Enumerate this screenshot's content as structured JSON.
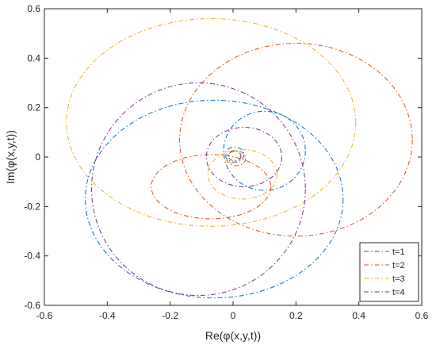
{
  "chart_data": {
    "type": "line",
    "title": "",
    "xlabel": "Re(φ(x,y,t))",
    "ylabel": "Im(φ(x,y,t))",
    "xlim": [
      -0.6,
      0.6
    ],
    "ylim": [
      -0.6,
      0.6
    ],
    "x_ticks": [
      -0.6,
      -0.4,
      -0.2,
      0,
      0.2,
      0.4,
      0.6
    ],
    "y_ticks": [
      -0.6,
      -0.4,
      -0.2,
      0,
      0.2,
      0.4,
      0.6
    ],
    "x_tick_labels": [
      "-0.6",
      "-0.4",
      "-0.2",
      "0",
      "0.2",
      "0.4",
      "0.6"
    ],
    "y_tick_labels": [
      "-0.6",
      "-0.4",
      "-0.2",
      "0",
      "0.2",
      "0.4",
      "0.6"
    ],
    "grid": false,
    "legend_position": "bottom-right",
    "line_style": "dash-dot",
    "series": [
      {
        "name": "t=1",
        "color": "#0072BD",
        "loops": [
          {
            "cx": -0.06,
            "cy": -0.17,
            "rx": 0.41,
            "ry": 0.4,
            "rot": 0
          },
          {
            "cx": 0.1,
            "cy": 0.025,
            "rx": 0.13,
            "ry": 0.16,
            "rot": 0
          },
          {
            "cx": 0.005,
            "cy": 0.01,
            "rx": 0.03,
            "ry": 0.03,
            "rot": 0
          }
        ]
      },
      {
        "name": "t=2",
        "color": "#D95319",
        "loops": [
          {
            "cx": 0.2,
            "cy": 0.07,
            "rx": 0.37,
            "ry": 0.39,
            "rot": 0
          },
          {
            "cx": -0.07,
            "cy": -0.12,
            "rx": 0.19,
            "ry": 0.13,
            "rot": 0
          },
          {
            "cx": 0.01,
            "cy": -0.005,
            "rx": 0.03,
            "ry": 0.03,
            "rot": 0
          }
        ]
      },
      {
        "name": "t=3",
        "color": "#EDB120",
        "loops": [
          {
            "cx": -0.07,
            "cy": 0.14,
            "rx": 0.46,
            "ry": 0.42,
            "rot": 0
          },
          {
            "cx": 0.03,
            "cy": -0.07,
            "rx": 0.11,
            "ry": 0.1,
            "rot": 0
          },
          {
            "cx": 0.0,
            "cy": 0.0,
            "rx": 0.025,
            "ry": 0.025,
            "rot": 0
          }
        ]
      },
      {
        "name": "t=4",
        "color": "#7E2F8E",
        "loops": [
          {
            "cx": -0.11,
            "cy": -0.13,
            "rx": 0.34,
            "ry": 0.43,
            "rot": 0
          },
          {
            "cx": 0.035,
            "cy": 0.0,
            "rx": 0.12,
            "ry": 0.12,
            "rot": 0
          },
          {
            "cx": 0.005,
            "cy": 0.005,
            "rx": 0.02,
            "ry": 0.02,
            "rot": 0
          }
        ]
      }
    ]
  }
}
